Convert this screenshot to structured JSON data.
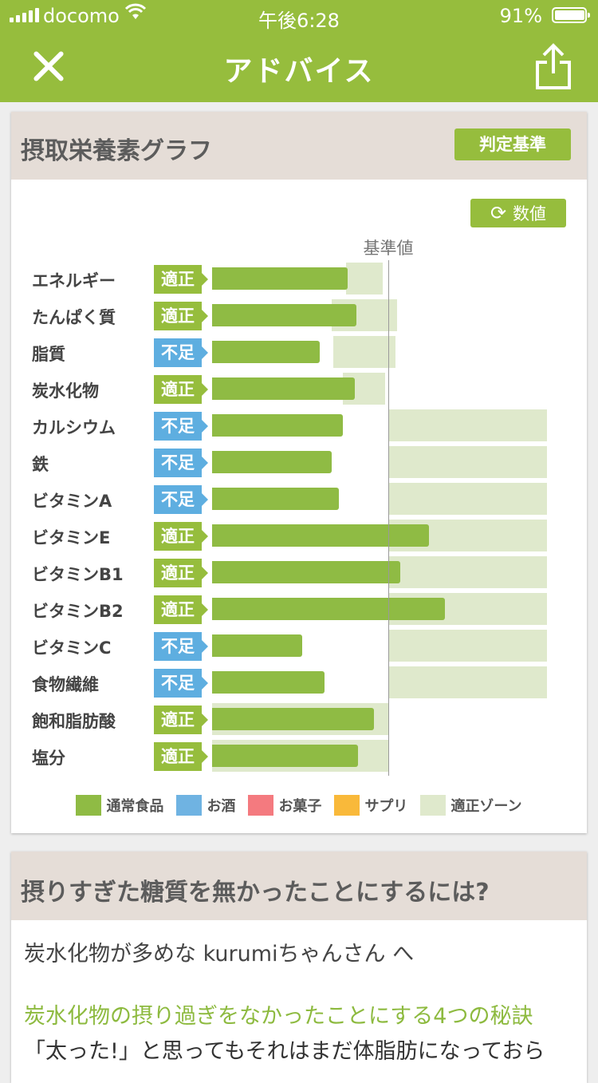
{
  "status_bar": {
    "carrier": "docomo",
    "time": "午後6:28",
    "battery": "91%"
  },
  "nav": {
    "title": "アドバイス"
  },
  "nutrient_card": {
    "title": "摂取栄養素グラフ",
    "judge_button": "判定基準",
    "value_button": "数値",
    "baseline_label": "基準値",
    "rows": [
      {
        "label": "エネルギー",
        "status": "適正",
        "kind": "ok",
        "bar": 0.77,
        "zone": [
          0.76,
          0.97
        ]
      },
      {
        "label": "たんぱく質",
        "status": "適正",
        "kind": "ok",
        "bar": 0.82,
        "zone": [
          0.68,
          1.05
        ]
      },
      {
        "label": "脂質",
        "status": "不足",
        "kind": "low",
        "bar": 0.61,
        "zone": [
          0.69,
          1.04
        ]
      },
      {
        "label": "炭水化物",
        "status": "適正",
        "kind": "ok",
        "bar": 0.81,
        "zone": [
          0.74,
          0.98
        ]
      },
      {
        "label": "カルシウム",
        "status": "不足",
        "kind": "low",
        "bar": 0.74,
        "zone": [
          1.0,
          1.9
        ]
      },
      {
        "label": "鉄",
        "status": "不足",
        "kind": "low",
        "bar": 0.68,
        "zone": [
          1.0,
          1.9
        ]
      },
      {
        "label": "ビタミンA",
        "status": "不足",
        "kind": "low",
        "bar": 0.72,
        "zone": [
          1.0,
          1.9
        ]
      },
      {
        "label": "ビタミンE",
        "status": "適正",
        "kind": "ok",
        "bar": 1.23,
        "zone": [
          1.0,
          1.9
        ]
      },
      {
        "label": "ビタミンB1",
        "status": "適正",
        "kind": "ok",
        "bar": 1.07,
        "zone": [
          1.0,
          1.9
        ]
      },
      {
        "label": "ビタミンB2",
        "status": "適正",
        "kind": "ok",
        "bar": 1.32,
        "zone": [
          1.0,
          1.9
        ]
      },
      {
        "label": "ビタミンC",
        "status": "不足",
        "kind": "low",
        "bar": 0.51,
        "zone": [
          1.0,
          1.9
        ]
      },
      {
        "label": "食物繊維",
        "status": "不足",
        "kind": "low",
        "bar": 0.64,
        "zone": [
          1.0,
          1.9
        ]
      },
      {
        "label": "飽和脂肪酸",
        "status": "適正",
        "kind": "ok",
        "bar": 0.92,
        "zone": [
          0.0,
          1.0
        ]
      },
      {
        "label": "塩分",
        "status": "適正",
        "kind": "ok",
        "bar": 0.83,
        "zone": [
          0.0,
          1.0
        ]
      }
    ],
    "legend": [
      {
        "label": "通常食品",
        "color": "#8fbb44"
      },
      {
        "label": "お酒",
        "color": "#6fb3e2"
      },
      {
        "label": "お菓子",
        "color": "#f47a7f"
      },
      {
        "label": "サプリ",
        "color": "#f9b93a"
      },
      {
        "label": "適正ゾーン",
        "color": "#dfe9cc"
      }
    ]
  },
  "advice_card": {
    "title": "摂りすぎた糖質を無かったことにするには?",
    "greeting": "炭水化物が多めな kurumiちゃんさん へ",
    "link": "炭水化物の摂り過ぎをなかったことにする4つの秘訣",
    "body": "「太った!」と思ってもそれはまだ体脂肪になっておら"
  }
}
